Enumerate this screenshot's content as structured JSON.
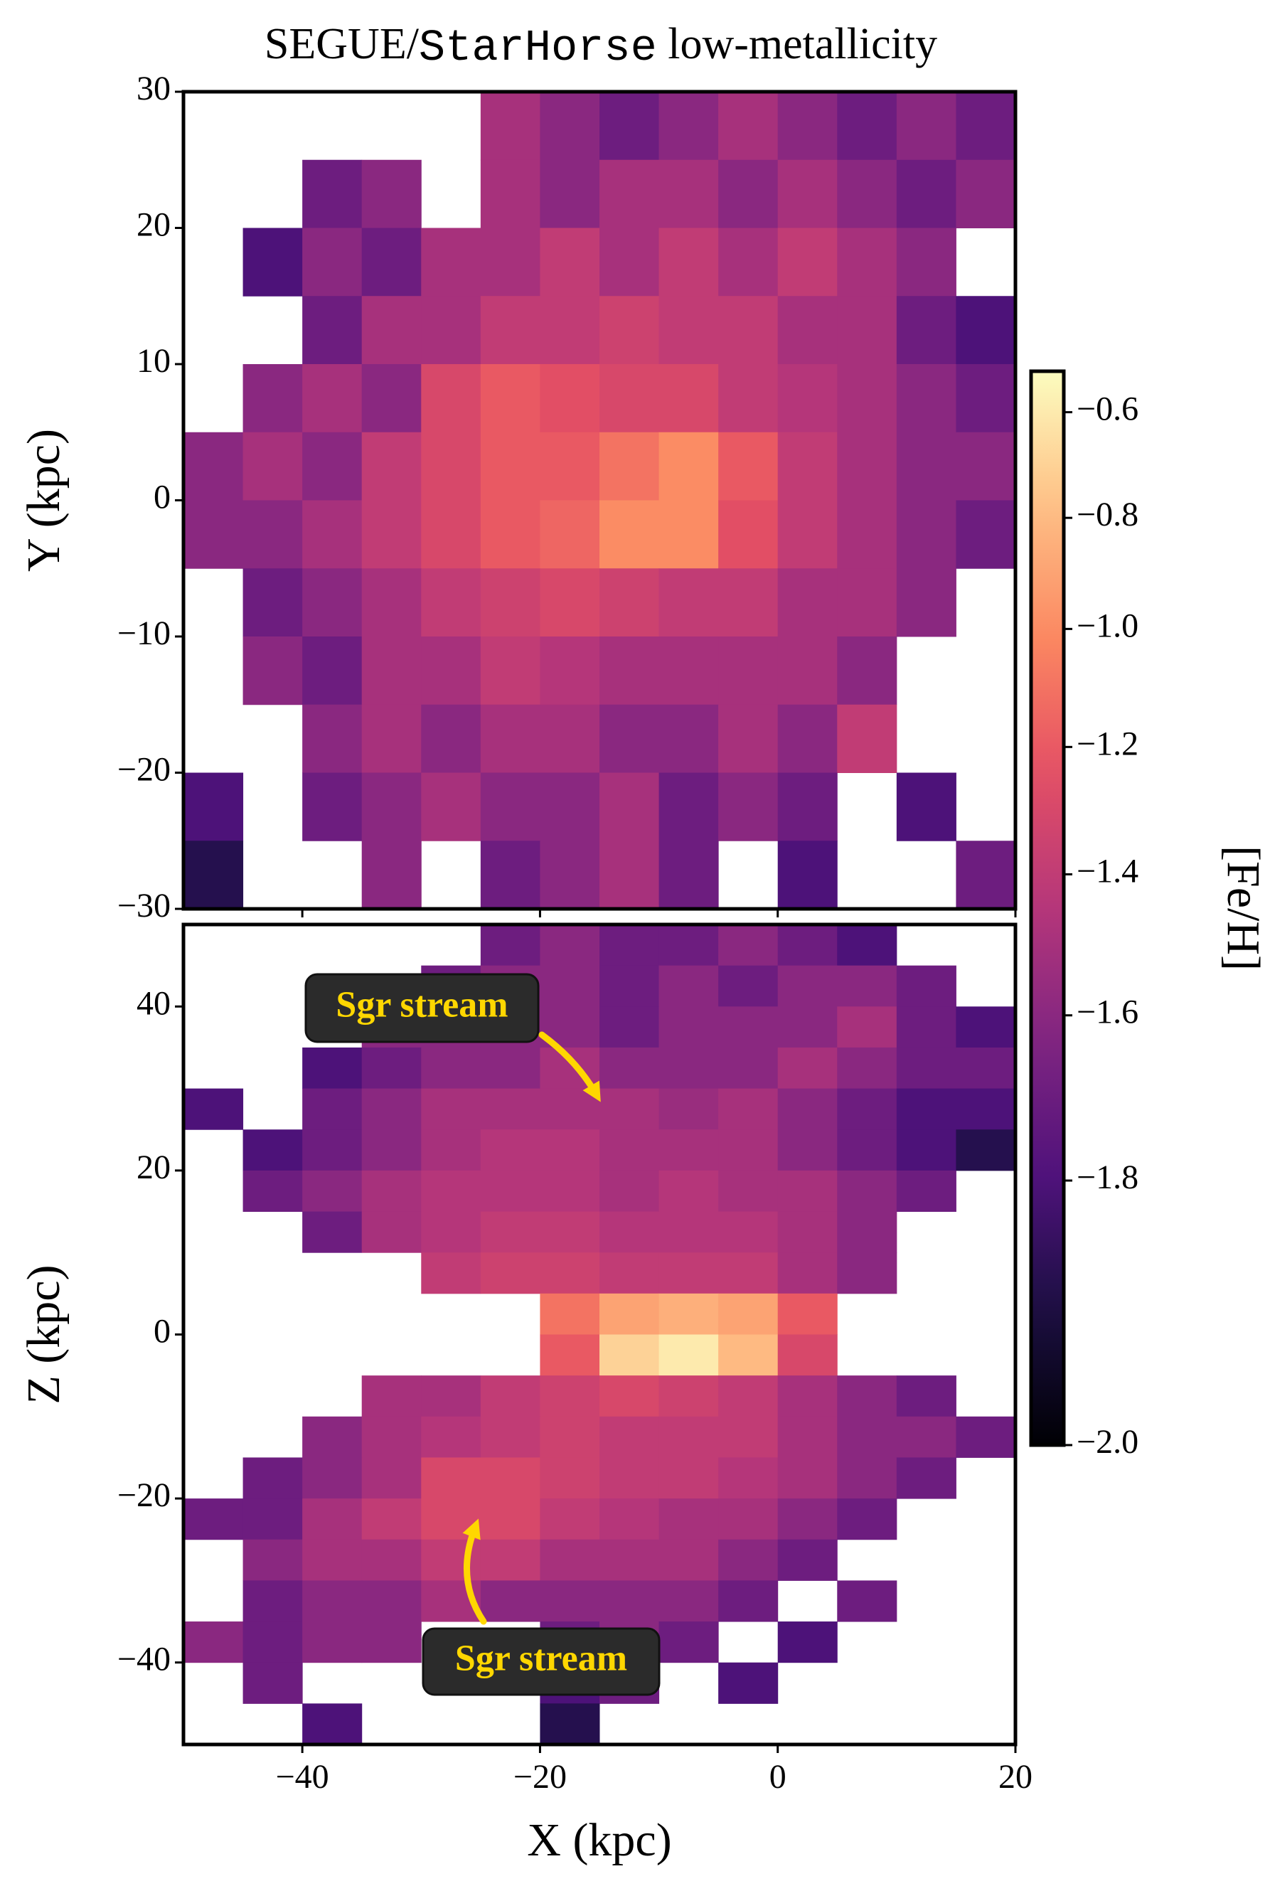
{
  "title": [
    "SEGUE/",
    "StarHorse",
    " low-metallicity"
  ],
  "colorbar": {
    "label": "[Fe/H]",
    "cmap": "magma",
    "clim": [
      -2.0,
      -0.52
    ],
    "norm": {
      "type": "power",
      "gamma": 0.7
    },
    "ticks": [
      {
        "value": -0.6,
        "label": "−0.6"
      },
      {
        "value": -0.8,
        "label": "−0.8"
      },
      {
        "value": -1.0,
        "label": "−1.0"
      },
      {
        "value": -1.2,
        "label": "−1.2"
      },
      {
        "value": -1.4,
        "label": "−1.4"
      },
      {
        "value": -1.6,
        "label": "−1.6"
      },
      {
        "value": -1.8,
        "label": "−1.8"
      },
      {
        "value": -2.0,
        "label": "−2.0"
      }
    ]
  },
  "chart_data": [
    {
      "type": "heatmap",
      "ylabel": "Y (kpc)",
      "xlim": [
        -50,
        20
      ],
      "ylim": [
        -30,
        30
      ],
      "xticks": [
        -40,
        -20,
        0,
        20
      ],
      "yticks": [
        30,
        20,
        10,
        0,
        {
          "value": -10,
          "label": "−10"
        },
        {
          "value": -20,
          "label": "−20"
        },
        {
          "value": -30,
          "label": "−30"
        }
      ],
      "x_bins": [
        -50,
        -45,
        -40,
        -35,
        -30,
        -25,
        -20,
        -15,
        -10,
        -5,
        0,
        5,
        10,
        15,
        20
      ],
      "y_bins": [
        30,
        25,
        20,
        15,
        10,
        5,
        0,
        -5,
        -10,
        -15,
        -20,
        -25,
        -30
      ],
      "values": [
        [
          null,
          null,
          null,
          null,
          null,
          -1.5,
          -1.6,
          -1.7,
          -1.6,
          -1.5,
          -1.6,
          -1.7,
          -1.6,
          -1.7
        ],
        [
          null,
          null,
          -1.7,
          -1.6,
          null,
          -1.5,
          -1.6,
          -1.5,
          -1.5,
          -1.6,
          -1.5,
          -1.6,
          -1.7,
          -1.6
        ],
        [
          null,
          -1.8,
          -1.6,
          -1.7,
          -1.5,
          -1.5,
          -1.4,
          -1.5,
          -1.4,
          -1.5,
          -1.4,
          -1.5,
          -1.6,
          null
        ],
        [
          null,
          null,
          -1.7,
          -1.5,
          -1.5,
          -1.4,
          -1.4,
          -1.35,
          -1.4,
          -1.4,
          -1.5,
          -1.5,
          -1.7,
          -1.8
        ],
        [
          null,
          -1.6,
          -1.5,
          -1.6,
          -1.3,
          -1.2,
          -1.25,
          -1.3,
          -1.3,
          -1.4,
          -1.45,
          -1.5,
          -1.6,
          -1.7
        ],
        [
          -1.6,
          -1.5,
          -1.6,
          -1.4,
          -1.3,
          -1.2,
          -1.2,
          -1.1,
          -1.0,
          -1.2,
          -1.4,
          -1.5,
          -1.6,
          -1.6
        ],
        [
          -1.6,
          -1.6,
          -1.5,
          -1.4,
          -1.3,
          -1.2,
          -1.15,
          -1.0,
          -1.0,
          -1.25,
          -1.4,
          -1.5,
          -1.6,
          -1.7
        ],
        [
          null,
          -1.7,
          -1.6,
          -1.5,
          -1.4,
          -1.35,
          -1.3,
          -1.35,
          -1.4,
          -1.4,
          -1.5,
          -1.5,
          -1.6,
          null
        ],
        [
          null,
          -1.6,
          -1.7,
          -1.5,
          -1.5,
          -1.4,
          -1.45,
          -1.5,
          -1.5,
          -1.5,
          -1.5,
          -1.6,
          null,
          null
        ],
        [
          null,
          null,
          -1.6,
          -1.5,
          -1.6,
          -1.5,
          -1.5,
          -1.6,
          -1.6,
          -1.5,
          -1.6,
          -1.4,
          null,
          null
        ],
        [
          -1.8,
          null,
          -1.7,
          -1.6,
          -1.5,
          -1.6,
          -1.6,
          -1.5,
          -1.7,
          -1.6,
          -1.7,
          null,
          -1.8,
          null
        ],
        [
          -1.9,
          null,
          null,
          -1.6,
          null,
          -1.7,
          -1.6,
          -1.5,
          -1.7,
          null,
          -1.8,
          null,
          null,
          -1.7
        ]
      ]
    },
    {
      "type": "heatmap",
      "xlabel": "X (kpc)",
      "ylabel": "Z (kpc)",
      "xlim": [
        -50,
        20
      ],
      "ylim": [
        -50,
        50
      ],
      "xticks": [
        {
          "value": -40,
          "label": "−40"
        },
        {
          "value": -20,
          "label": "−20"
        },
        0,
        20
      ],
      "yticks": [
        40,
        20,
        0,
        {
          "value": -20,
          "label": "−20"
        },
        {
          "value": -40,
          "label": "−40"
        }
      ],
      "x_bins": [
        -50,
        -45,
        -40,
        -35,
        -30,
        -25,
        -20,
        -15,
        -10,
        -5,
        0,
        5,
        10,
        15,
        20
      ],
      "y_bins": [
        50,
        45,
        40,
        35,
        30,
        25,
        20,
        15,
        10,
        5,
        0,
        -5,
        -10,
        -15,
        -20,
        -25,
        -30,
        -35,
        -40,
        -45,
        -50
      ],
      "annotations": [
        "Sgr stream",
        "Sgr stream"
      ],
      "values": [
        [
          null,
          null,
          null,
          null,
          null,
          -1.7,
          -1.6,
          -1.7,
          -1.7,
          -1.6,
          -1.7,
          -1.8,
          null,
          null
        ],
        [
          null,
          null,
          null,
          null,
          -1.7,
          -1.6,
          -1.6,
          -1.7,
          -1.6,
          -1.7,
          -1.6,
          -1.6,
          -1.7,
          null
        ],
        [
          null,
          null,
          null,
          -1.6,
          -1.6,
          -1.6,
          -1.6,
          -1.7,
          -1.6,
          -1.6,
          -1.6,
          -1.5,
          -1.7,
          -1.8
        ],
        [
          null,
          null,
          -1.8,
          -1.7,
          -1.6,
          -1.6,
          -1.5,
          -1.6,
          -1.6,
          -1.6,
          -1.5,
          -1.6,
          -1.7,
          -1.7
        ],
        [
          -1.8,
          null,
          -1.7,
          -1.6,
          -1.5,
          -1.5,
          -1.5,
          -1.5,
          -1.55,
          -1.5,
          -1.6,
          -1.7,
          -1.8,
          -1.8
        ],
        [
          null,
          -1.8,
          -1.7,
          -1.6,
          -1.5,
          -1.45,
          -1.45,
          -1.5,
          -1.5,
          -1.5,
          -1.6,
          -1.7,
          -1.8,
          -1.9
        ],
        [
          null,
          -1.7,
          -1.6,
          -1.5,
          -1.45,
          -1.45,
          -1.45,
          -1.5,
          -1.45,
          -1.5,
          -1.5,
          -1.6,
          -1.7,
          null
        ],
        [
          null,
          null,
          -1.7,
          -1.5,
          -1.45,
          -1.4,
          -1.4,
          -1.45,
          -1.45,
          -1.45,
          -1.5,
          -1.6,
          null,
          null
        ],
        [
          null,
          null,
          null,
          null,
          -1.4,
          -1.35,
          -1.35,
          -1.4,
          -1.4,
          -1.4,
          -1.5,
          -1.6,
          null,
          null
        ],
        [
          null,
          null,
          null,
          null,
          null,
          null,
          -1.1,
          -0.9,
          -0.85,
          -0.9,
          -1.2,
          null,
          null,
          null
        ],
        [
          null,
          null,
          null,
          null,
          null,
          null,
          -1.2,
          -0.7,
          -0.6,
          -0.8,
          -1.3,
          null,
          null,
          null
        ],
        [
          null,
          null,
          null,
          -1.5,
          -1.5,
          -1.4,
          -1.35,
          -1.3,
          -1.35,
          -1.4,
          -1.5,
          -1.6,
          -1.7,
          null
        ],
        [
          null,
          null,
          -1.6,
          -1.5,
          -1.45,
          -1.4,
          -1.35,
          -1.4,
          -1.4,
          -1.4,
          -1.5,
          -1.6,
          -1.6,
          -1.7
        ],
        [
          null,
          -1.7,
          -1.6,
          -1.5,
          -1.3,
          -1.3,
          -1.35,
          -1.4,
          -1.4,
          -1.45,
          -1.5,
          -1.6,
          -1.7,
          null
        ],
        [
          -1.7,
          -1.7,
          -1.5,
          -1.4,
          -1.3,
          -1.3,
          -1.4,
          -1.45,
          -1.5,
          -1.5,
          -1.6,
          -1.7,
          null,
          null
        ],
        [
          null,
          -1.6,
          -1.5,
          -1.5,
          -1.4,
          -1.4,
          -1.5,
          -1.5,
          -1.5,
          -1.6,
          -1.7,
          null,
          null,
          null
        ],
        [
          null,
          -1.7,
          -1.6,
          -1.6,
          -1.5,
          -1.6,
          -1.6,
          -1.6,
          -1.6,
          -1.7,
          null,
          -1.7,
          null,
          null
        ],
        [
          -1.6,
          -1.7,
          -1.6,
          -1.6,
          null,
          null,
          -1.7,
          -1.6,
          -1.7,
          null,
          -1.8,
          null,
          null,
          null
        ],
        [
          null,
          -1.7,
          null,
          null,
          null,
          null,
          -1.8,
          -1.7,
          null,
          -1.8,
          null,
          null,
          null,
          null
        ],
        [
          null,
          null,
          -1.8,
          null,
          null,
          null,
          -1.9,
          null,
          null,
          null,
          null,
          null,
          null,
          null
        ]
      ]
    }
  ]
}
